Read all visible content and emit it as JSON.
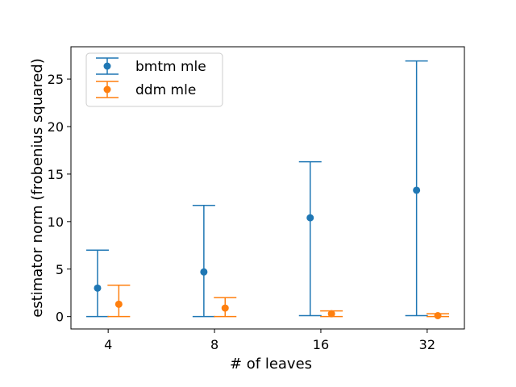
{
  "chart_data": {
    "type": "errorbar",
    "title": "",
    "xlabel": "# of leaves",
    "ylabel": "estimator norm (frobenius squared)",
    "categories": [
      "4",
      "8",
      "16",
      "32"
    ],
    "ylim": [
      -1.3,
      28.4
    ],
    "yticks": [
      0,
      5,
      10,
      15,
      20,
      25
    ],
    "grid": false,
    "legend_position": "upper-left",
    "series": [
      {
        "name": "bmtm mle",
        "color": "#1f77b4",
        "offset": -0.1,
        "values": [
          3.0,
          4.7,
          10.4,
          13.3
        ],
        "lower": [
          0.0,
          0.0,
          0.1,
          0.1
        ],
        "upper": [
          7.0,
          11.7,
          16.3,
          26.9
        ]
      },
      {
        "name": "ddm mle",
        "color": "#ff7f0e",
        "offset": 0.1,
        "values": [
          1.3,
          0.9,
          0.3,
          0.1
        ],
        "lower": [
          0.0,
          0.0,
          0.0,
          0.0
        ],
        "upper": [
          3.3,
          2.0,
          0.6,
          0.3
        ]
      }
    ]
  }
}
